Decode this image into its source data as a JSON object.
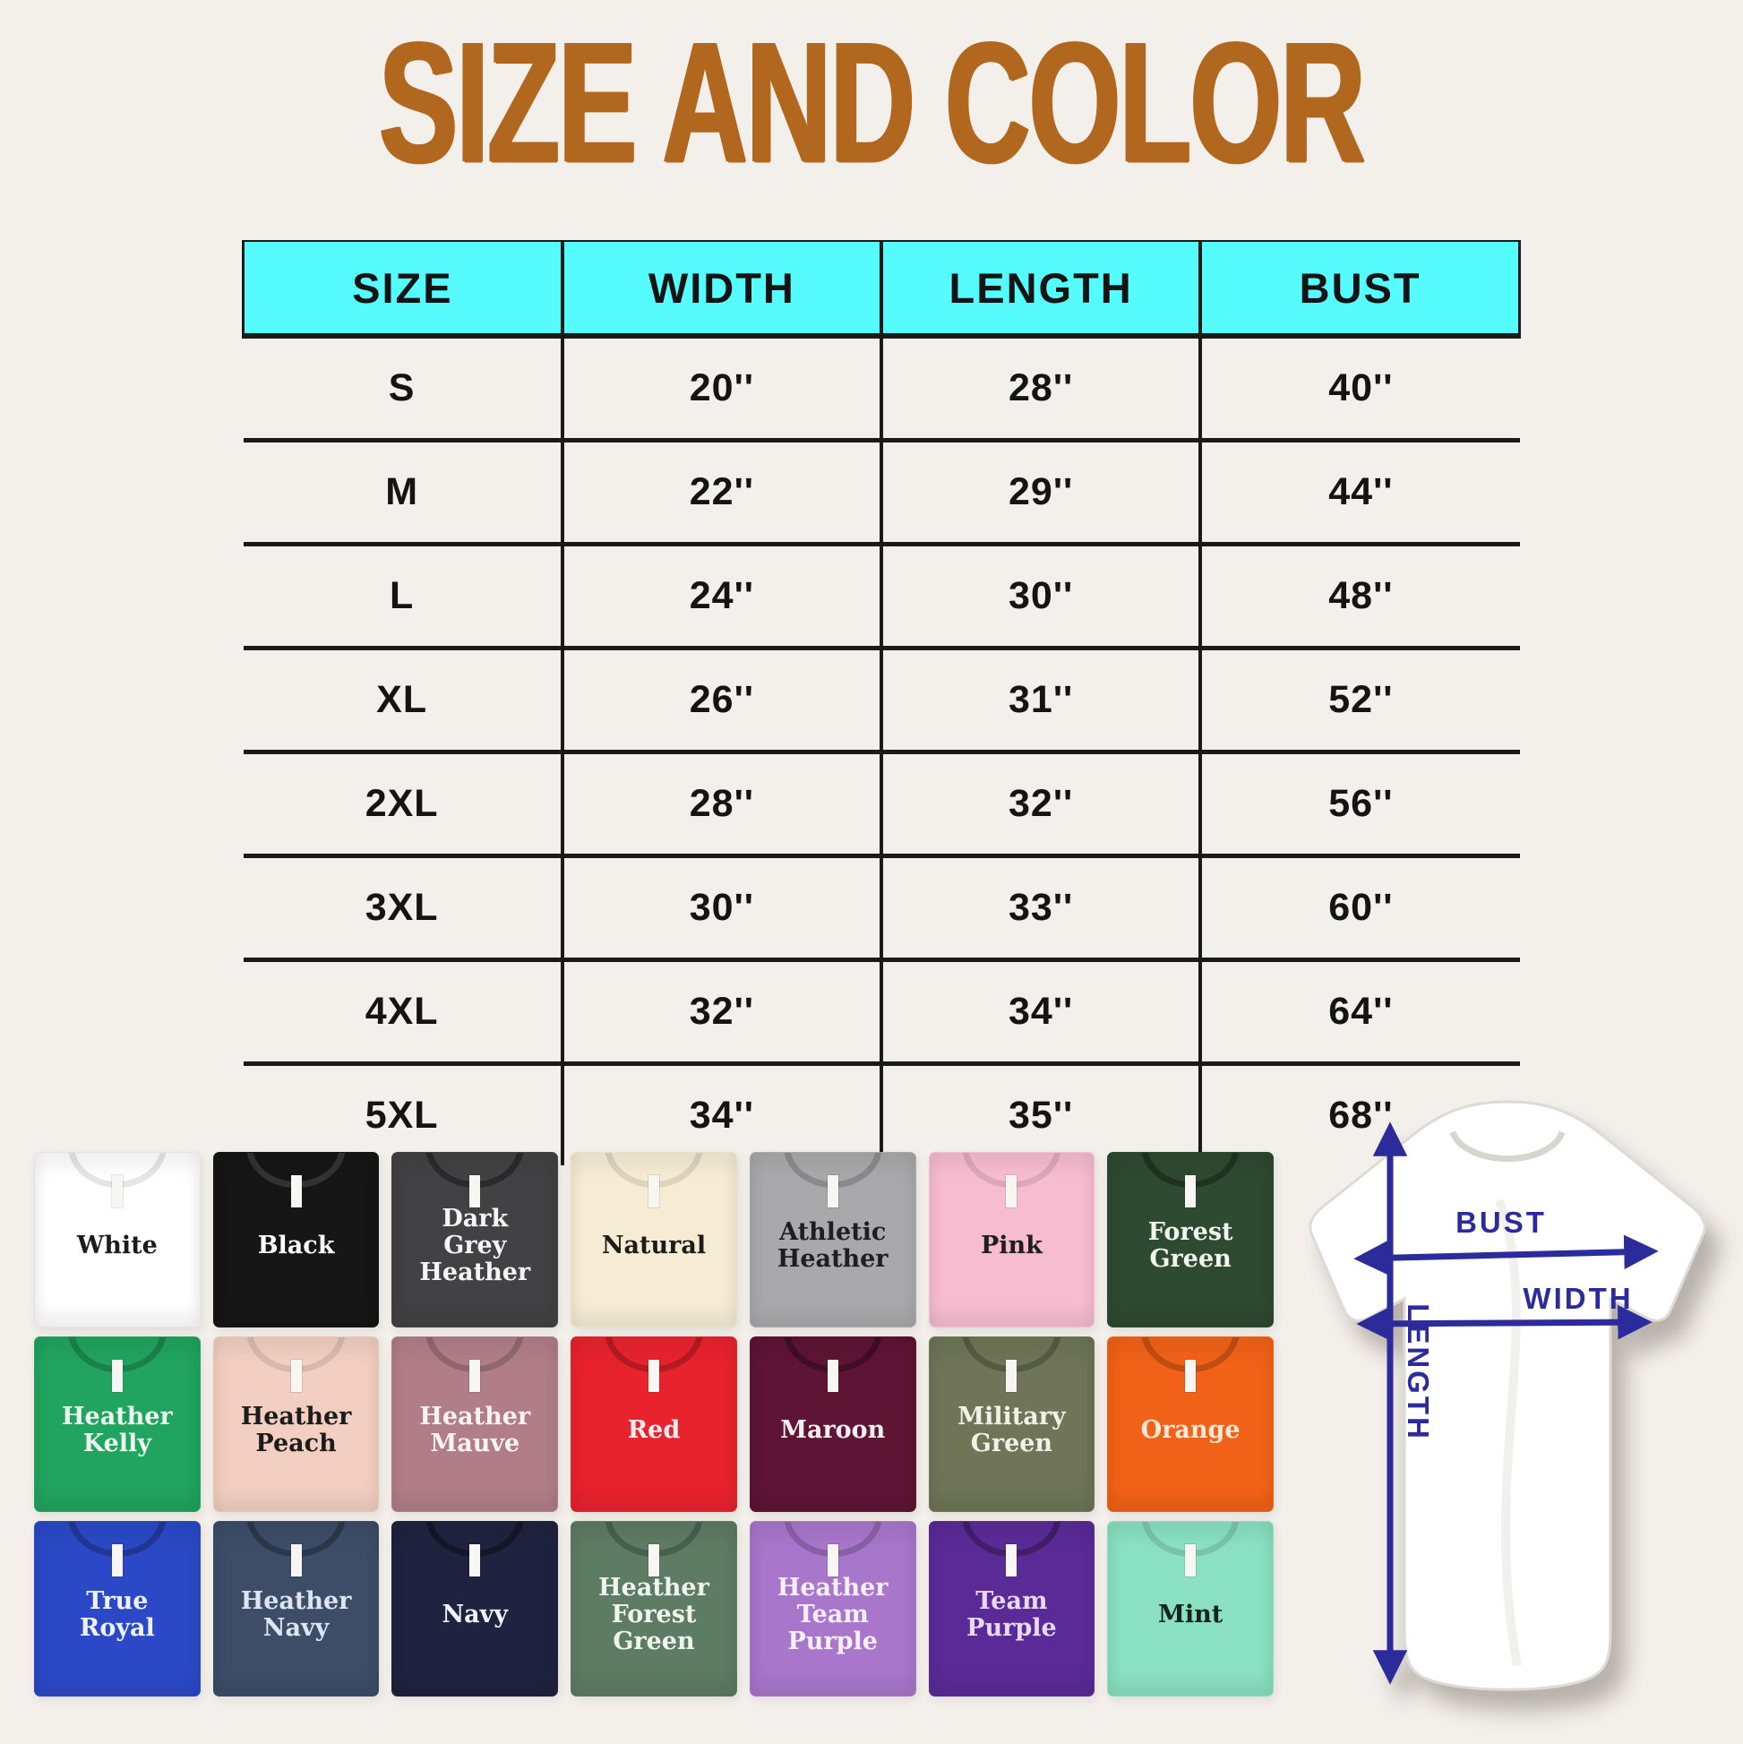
{
  "title": "SIZE AND COLOR",
  "colors": {
    "background": "#f3efea",
    "title_text": "#b2671f",
    "table_header_bg": "#55fbfd",
    "table_lines": "#1a1a1a",
    "diagram_arrows": "#2b2b9c"
  },
  "size_table": {
    "headers": [
      "SIZE",
      "WIDTH",
      "LENGTH",
      "BUST"
    ],
    "rows": [
      [
        "S",
        "20''",
        "28''",
        "40''"
      ],
      [
        "M",
        "22''",
        "29''",
        "44''"
      ],
      [
        "L",
        "24''",
        "30''",
        "48''"
      ],
      [
        "XL",
        "26''",
        "31''",
        "52''"
      ],
      [
        "2XL",
        "28''",
        "32''",
        "56''"
      ],
      [
        "3XL",
        "30''",
        "33''",
        "60''"
      ],
      [
        "4XL",
        "32''",
        "34''",
        "64''"
      ],
      [
        "5XL",
        "34''",
        "35''",
        "68''"
      ]
    ]
  },
  "shirts": [
    {
      "name": "White",
      "color": "#ffffff",
      "text_color": "#1c1c1c",
      "collar": "rgba(0,0,0,0.10)",
      "edge": "#e6e2dc"
    },
    {
      "name": "Black",
      "color": "#161616",
      "text_color": "#ffffff",
      "collar": "rgba(255,255,255,0.12)"
    },
    {
      "name": "Dark Grey Heather",
      "color": "#424244",
      "text_color": "#f5f5f5",
      "collar": "rgba(0,0,0,0.35)"
    },
    {
      "name": "Natural",
      "color": "#f6ecd3",
      "text_color": "#1c1c1c",
      "collar": "rgba(0,0,0,0.10)",
      "edge": "#e9dfc6"
    },
    {
      "name": "Athletic Heather",
      "color": "#a9a9ab",
      "text_color": "#1f1f1f",
      "collar": "rgba(0,0,0,0.18)"
    },
    {
      "name": "Pink",
      "color": "#f7bcd0",
      "text_color": "#1f1f1f",
      "collar": "rgba(0,0,0,0.10)"
    },
    {
      "name": "Forest Green",
      "color": "#2e4a30",
      "text_color": "#f1f6ee",
      "collar": "rgba(0,0,0,0.30)"
    },
    {
      "name": "Heather Kelly",
      "color": "#21a45f",
      "text_color": "#eafaf0",
      "collar": "rgba(0,0,0,0.20)"
    },
    {
      "name": "Heather Peach",
      "color": "#f2cfc1",
      "text_color": "#1c1c1c",
      "collar": "rgba(0,0,0,0.10)",
      "edge": "#e8c3b4"
    },
    {
      "name": "Heather Mauve",
      "color": "#b17e88",
      "text_color": "#fdf3f5",
      "collar": "rgba(0,0,0,0.18)"
    },
    {
      "name": "Red",
      "color": "#e8232e",
      "text_color": "#ffecec",
      "collar": "rgba(0,0,0,0.22)"
    },
    {
      "name": "Maroon",
      "color": "#5d1533",
      "text_color": "#fbeef3",
      "collar": "rgba(0,0,0,0.30)"
    },
    {
      "name": "Military Green",
      "color": "#6f7556",
      "text_color": "#f0f2e6",
      "collar": "rgba(0,0,0,0.22)"
    },
    {
      "name": "Orange",
      "color": "#f16218",
      "text_color": "#ffe9d6",
      "collar": "rgba(0,0,0,0.20)"
    },
    {
      "name": "True Royal",
      "color": "#2b49c6",
      "text_color": "#eef2ff",
      "collar": "rgba(0,0,0,0.24)"
    },
    {
      "name": "Heather Navy",
      "color": "#3d4d68",
      "text_color": "#dde5f0",
      "collar": "rgba(0,0,0,0.28)"
    },
    {
      "name": "Navy",
      "color": "#20233f",
      "text_color": "#f2f3fa",
      "collar": "rgba(0,0,0,0.35)"
    },
    {
      "name": "Heather Forest Green",
      "color": "#5e7b64",
      "text_color": "#eef5ee",
      "collar": "rgba(0,0,0,0.22)"
    },
    {
      "name": "Heather Team Purple",
      "color": "#a876cb",
      "text_color": "#f7efff",
      "collar": "rgba(0,0,0,0.18)"
    },
    {
      "name": "Team Purple",
      "color": "#5a2b97",
      "text_color": "#e9d9f7",
      "collar": "rgba(0,0,0,0.28)"
    },
    {
      "name": "Mint",
      "color": "#89e0c2",
      "text_color": "#17241e",
      "collar": "rgba(0,0,0,0.12)"
    }
  ],
  "diagram": {
    "labels": {
      "bust": "BUST",
      "width": "WIDTH",
      "length": "LENGTH"
    }
  }
}
